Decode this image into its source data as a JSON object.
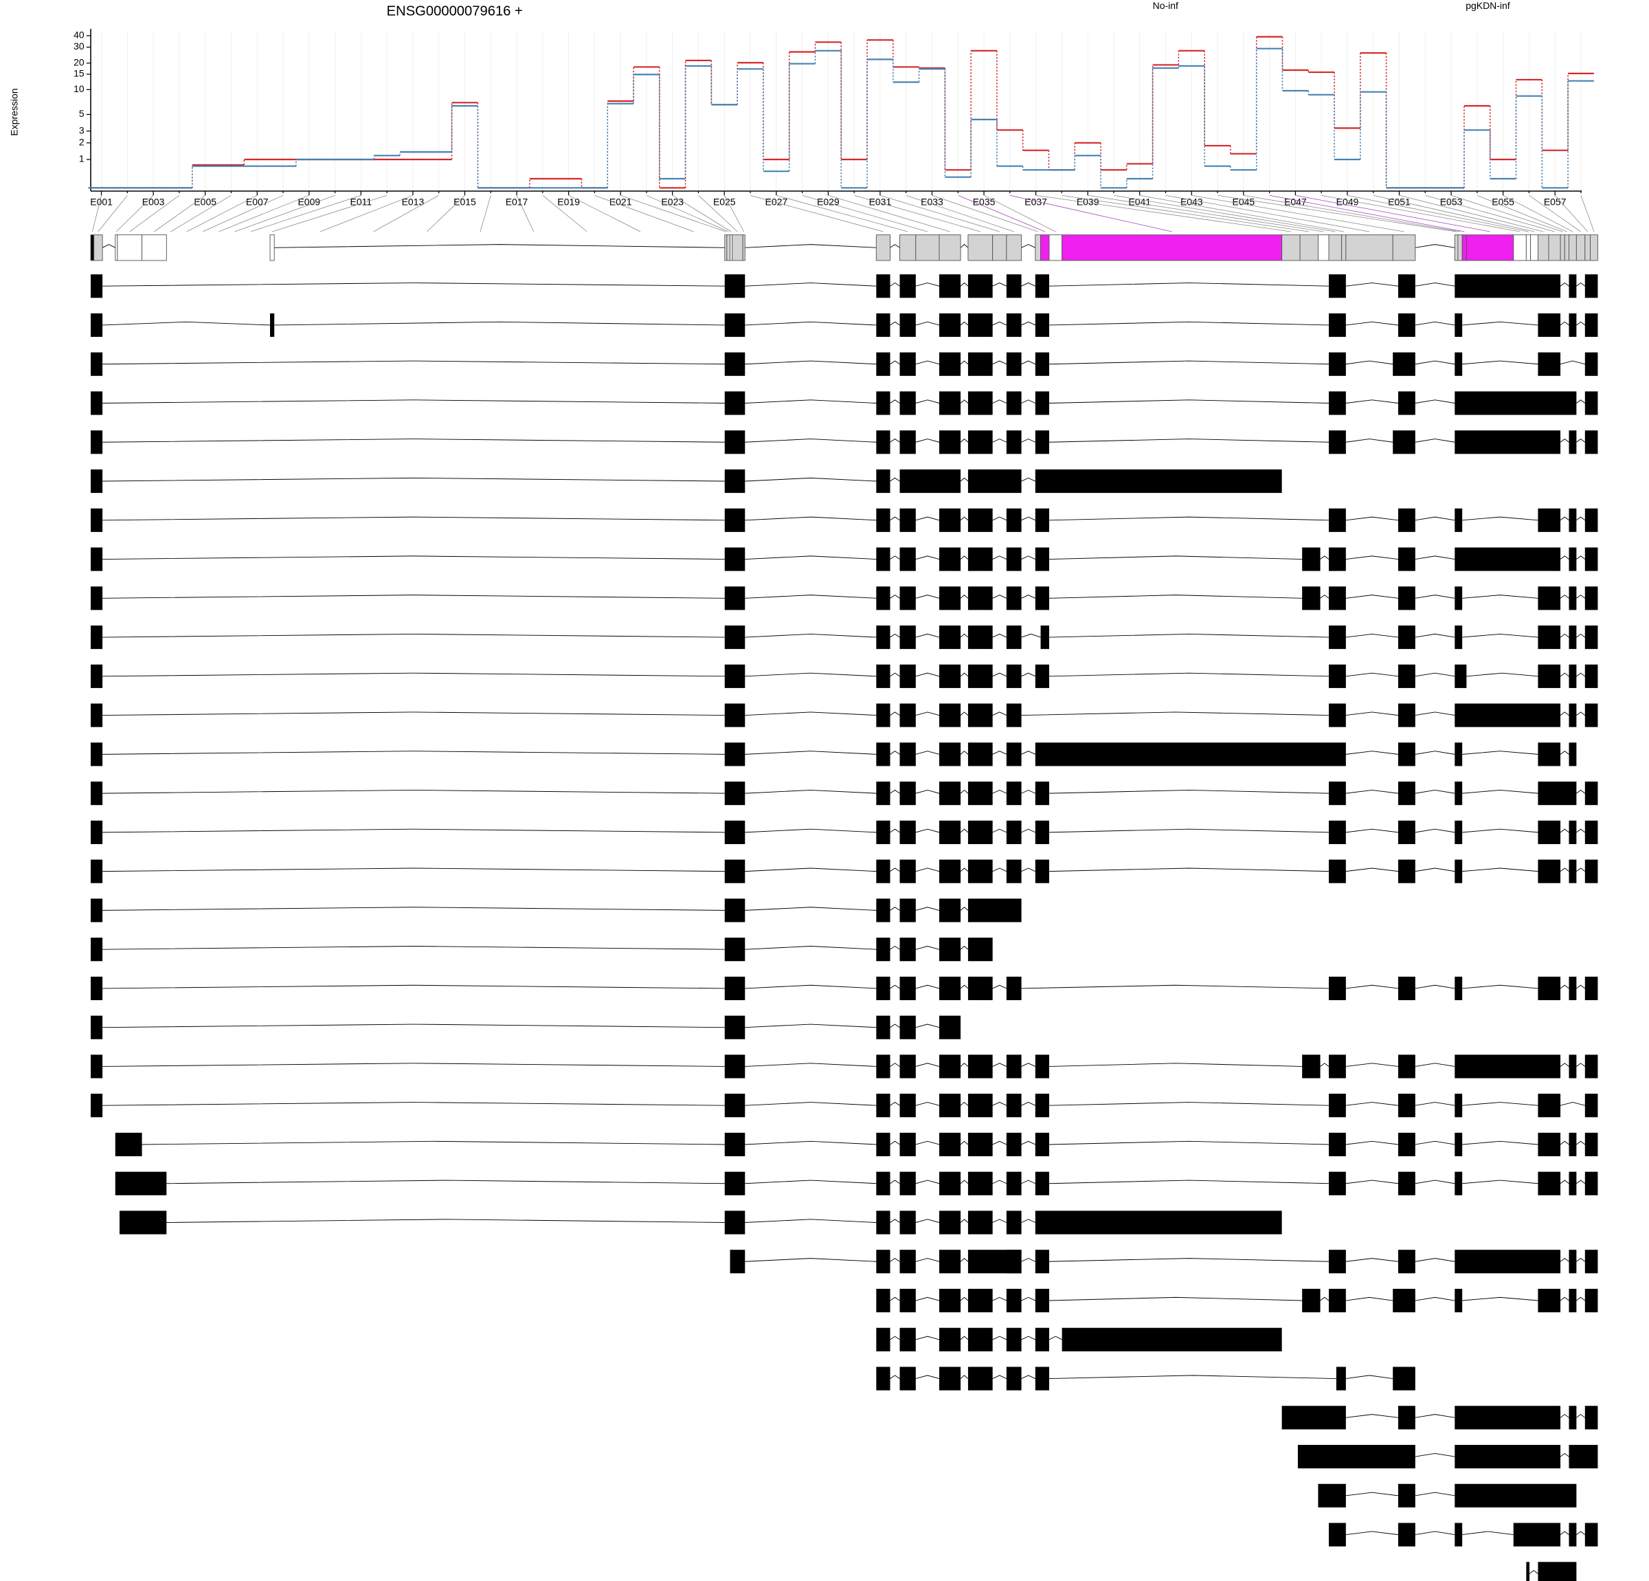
{
  "chart_data": {
    "type": "line",
    "title": "ENSG00000079616 +",
    "ylabel": "Expression",
    "categories": [
      "E001",
      null,
      "E003",
      null,
      "E005",
      null,
      "E007",
      null,
      "E009",
      null,
      "E011",
      null,
      "E013",
      null,
      "E015",
      null,
      "E017",
      null,
      "E019",
      null,
      "E021",
      null,
      "E023",
      null,
      "E025",
      null,
      "E027",
      null,
      "E029",
      null,
      "E031",
      null,
      "E033",
      null,
      "E035",
      null,
      "E037",
      null,
      "E039",
      null,
      "E041",
      null,
      "E043",
      null,
      "E045",
      null,
      "E047",
      null,
      "E049",
      null,
      "E051",
      null,
      "E053",
      null,
      "E055",
      null,
      "E057",
      null
    ],
    "series": [
      {
        "name": "No-inf",
        "color": "#d62728",
        "values": [
          0,
          0,
          0,
          0,
          0.75,
          0.75,
          1,
          1,
          1,
          1,
          1,
          1,
          1,
          1,
          7,
          0,
          0,
          0.25,
          0.25,
          0,
          7.3,
          18.1,
          0,
          21.4,
          6.6,
          20.2,
          1,
          26.6,
          34,
          1,
          35.9,
          18.1,
          17.6,
          0.55,
          27.4,
          3.1,
          1.5,
          0.55,
          2,
          0.55,
          0.8,
          19.1,
          27.4,
          1.8,
          1.3,
          38.9,
          16.7,
          15.8,
          3.3,
          25.9,
          0,
          0,
          0,
          6.4,
          1,
          13,
          1.5,
          15.3
        ]
      },
      {
        "name": "pgKDN-inf",
        "color": "#4682b4",
        "values": [
          0,
          0,
          0,
          0,
          0.7,
          0.7,
          0.7,
          0.7,
          1,
          1,
          1,
          1.2,
          1.4,
          1.4,
          6.4,
          0,
          0,
          0,
          0,
          0,
          6.8,
          14.9,
          0.25,
          18.6,
          6.6,
          17.2,
          0.5,
          19.7,
          27.4,
          0,
          22,
          12.2,
          17.2,
          0.3,
          4.3,
          0.7,
          0.55,
          0.55,
          1.2,
          0,
          0.25,
          17.6,
          18.6,
          0.7,
          0.55,
          28.9,
          9.7,
          8.7,
          1,
          9.4,
          0,
          0,
          0,
          3.1,
          0.25,
          8.4,
          0,
          12.6
        ]
      }
    ],
    "ylim": [
      0,
      45
    ],
    "yticks": [
      1,
      2,
      3,
      5,
      10,
      15,
      20,
      30,
      40
    ],
    "yscale": "log1p",
    "grid": true,
    "coordinates": {
      "xlim": [
        29790727,
        29805385
      ],
      "xticks": [
        29790727,
        29792356,
        29793984,
        29795613,
        29797242,
        29798870,
        29800499,
        29802128,
        29803756,
        29805385
      ]
    }
  }
}
